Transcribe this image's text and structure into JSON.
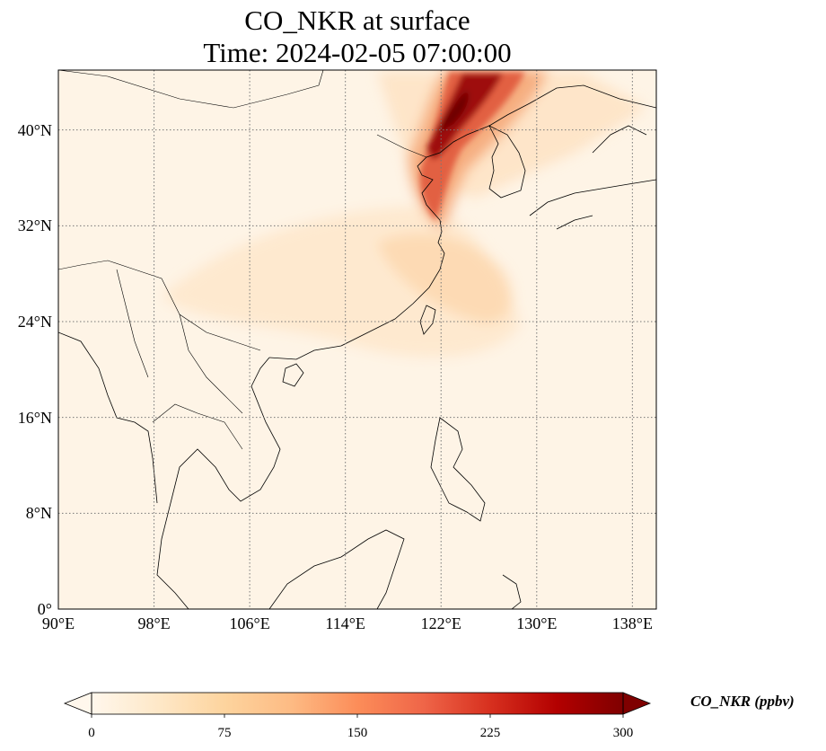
{
  "title_line1": "CO_NKR at surface",
  "title_line2": "Time: 2024-02-05 07:00:00",
  "map": {
    "projection": "PlateCarree",
    "lon_range": [
      90,
      140
    ],
    "lat_range": [
      0,
      45
    ],
    "gridlines": "dotted",
    "lat_ticks": [
      {
        "value": 0,
        "label": "0°"
      },
      {
        "value": 8,
        "label": "8°N"
      },
      {
        "value": 16,
        "label": "16°N"
      },
      {
        "value": 24,
        "label": "24°N"
      },
      {
        "value": 32,
        "label": "32°N"
      },
      {
        "value": 40,
        "label": "40°N"
      }
    ],
    "lon_ticks": [
      {
        "value": 90,
        "label": "90°E"
      },
      {
        "value": 98,
        "label": "98°E"
      },
      {
        "value": 106,
        "label": "106°E"
      },
      {
        "value": 114,
        "label": "114°E"
      },
      {
        "value": 122,
        "label": "122°E"
      },
      {
        "value": 130,
        "label": "130°E"
      },
      {
        "value": 138,
        "label": "138°E"
      }
    ],
    "field": "CO_NKR",
    "units": "ppbv",
    "colormap": "OrRd",
    "plume_max_region": "Bohai Sea / Liaoning, NE China (~121–127°E, 38–45°N)"
  },
  "colorbar": {
    "label": "CO_NKR (ppbv)",
    "min": 0,
    "max": 300,
    "extend": "both",
    "ticks": [
      "0",
      "75",
      "150",
      "225",
      "300"
    ],
    "colors": [
      "#fff7ec",
      "#fee8c8",
      "#fdd49e",
      "#fdbb84",
      "#fc8d59",
      "#ef6548",
      "#d7301f",
      "#b30000",
      "#7f0000"
    ]
  }
}
